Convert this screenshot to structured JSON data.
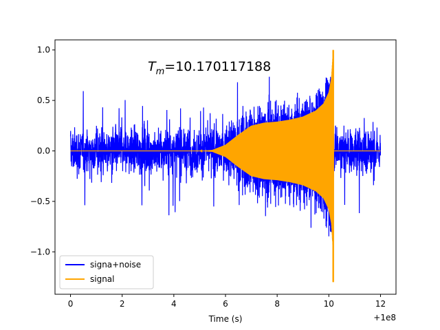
{
  "chart_data": {
    "type": "line",
    "title_main": "T",
    "title_sub": "m",
    "title_value": "=10.170117188",
    "xlabel": "Time (s)",
    "ylabel": "",
    "x_offset_label": "+1e8",
    "xlim": [
      -0.6,
      12.6
    ],
    "ylim": [
      -1.42,
      1.1
    ],
    "xticks": [
      0,
      2,
      4,
      6,
      8,
      10,
      12
    ],
    "xtick_labels": [
      "0",
      "2",
      "4",
      "6",
      "8",
      "10",
      "12"
    ],
    "yticks": [
      -1.0,
      -0.5,
      0.0,
      0.5,
      1.0
    ],
    "ytick_labels": [
      "−1.0",
      "−0.5",
      "0.0",
      "0.5",
      "1.0"
    ],
    "grid": false,
    "legend_position": "lower-left",
    "series": [
      {
        "name": "signa+noise",
        "color": "#0000ff",
        "x_range": [
          0,
          12
        ],
        "description_points": {
          "noise_envelope": 0.55,
          "noise_peaks_max": 0.75,
          "noise_peaks_min": -0.9
        }
      },
      {
        "name": "signal",
        "color": "#ffa500",
        "x_range": [
          0,
          12
        ],
        "envelope": [
          [
            0,
            0.0
          ],
          [
            5.0,
            0.0
          ],
          [
            5.5,
            0.01
          ],
          [
            6.0,
            0.06
          ],
          [
            6.5,
            0.16
          ],
          [
            7.0,
            0.25
          ],
          [
            7.5,
            0.28
          ],
          [
            8.0,
            0.29
          ],
          [
            8.5,
            0.31
          ],
          [
            9.0,
            0.34
          ],
          [
            9.5,
            0.4
          ],
          [
            9.8,
            0.47
          ],
          [
            10.0,
            0.58
          ],
          [
            10.1,
            0.72
          ],
          [
            10.17,
            1.0
          ],
          [
            10.18,
            0.0
          ],
          [
            12,
            0.0
          ]
        ],
        "min_spike": -1.3,
        "max_spike": 1.0,
        "merger_time": 10.170117188
      }
    ]
  }
}
